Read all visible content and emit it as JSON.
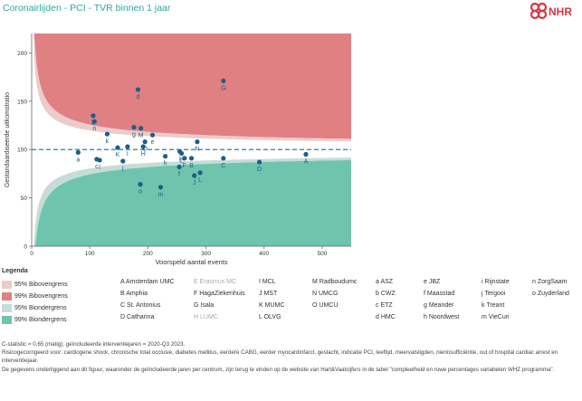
{
  "header": {
    "title": "Coronairlijden - PCI - TVR binnen 1 jaar",
    "logo_text": "NHR"
  },
  "chart_data": {
    "type": "scatter",
    "xlabel": "Voorspeld aantal events",
    "ylabel": "Gestandaardiseerde uitkomstratio",
    "xlim": [
      0,
      550
    ],
    "ylim": [
      0,
      220
    ],
    "xticks": [
      0,
      100,
      200,
      300,
      400,
      500
    ],
    "yticks": [
      0,
      50,
      100,
      150,
      200
    ],
    "reference_line": 100,
    "points": [
      {
        "label": "A",
        "x": 472,
        "y": 95
      },
      {
        "label": "B",
        "x": 275,
        "y": 91
      },
      {
        "label": "C",
        "x": 330,
        "y": 91
      },
      {
        "label": "D",
        "x": 392,
        "y": 87
      },
      {
        "label": "E",
        "x": 258,
        "y": 96
      },
      {
        "label": "F",
        "x": 263,
        "y": 91
      },
      {
        "label": "G",
        "x": 330,
        "y": 171
      },
      {
        "label": "H",
        "x": 192,
        "y": 103
      },
      {
        "label": "I",
        "x": 165,
        "y": 103
      },
      {
        "label": "J",
        "x": 280,
        "y": 73
      },
      {
        "label": "K",
        "x": 148,
        "y": 102
      },
      {
        "label": "L",
        "x": 290,
        "y": 76
      },
      {
        "label": "M",
        "x": 188,
        "y": 122
      },
      {
        "label": "N",
        "x": 285,
        "y": 108
      },
      {
        "label": "O",
        "x": 195,
        "y": 108
      },
      {
        "label": "a",
        "x": 80,
        "y": 97
      },
      {
        "label": "b",
        "x": 106,
        "y": 135
      },
      {
        "label": "c",
        "x": 112,
        "y": 90
      },
      {
        "label": "d",
        "x": 183,
        "y": 162
      },
      {
        "label": "e",
        "x": 208,
        "y": 115
      },
      {
        "label": "f",
        "x": 254,
        "y": 82
      },
      {
        "label": "g",
        "x": 176,
        "y": 123
      },
      {
        "label": "h",
        "x": 230,
        "y": 93
      },
      {
        "label": "i",
        "x": 255,
        "y": 98
      },
      {
        "label": "j",
        "x": 157,
        "y": 88
      },
      {
        "label": "k",
        "x": 130,
        "y": 116
      },
      {
        "label": "l",
        "x": 117,
        "y": 89
      },
      {
        "label": "m",
        "x": 222,
        "y": 61
      },
      {
        "label": "n",
        "x": 108,
        "y": 129
      },
      {
        "label": "o",
        "x": 187,
        "y": 64
      }
    ]
  },
  "legend": {
    "title": "Legenda",
    "bands": [
      {
        "label": "95% Bibovengrens",
        "color": "#ebcccc"
      },
      {
        "label": "99% Bibovengrens",
        "color": "#e08082"
      },
      {
        "label": "95% Biondergrens",
        "color": "#c6dcd7"
      },
      {
        "label": "99% Biondergrens",
        "color": "#6fc4ae"
      }
    ],
    "columns": [
      [
        {
          "t": "A Amsterdam UMC"
        },
        {
          "t": "B Amphia"
        },
        {
          "t": "C St. Antonius"
        },
        {
          "t": "D Catharina"
        }
      ],
      [
        {
          "t": "E Erasmus MC",
          "muted": true
        },
        {
          "t": "F HagaZiekenhuis"
        },
        {
          "t": "G Isala"
        },
        {
          "t": "H LUMC",
          "muted": true
        }
      ],
      [
        {
          "t": "I MCL"
        },
        {
          "t": "J MST"
        },
        {
          "t": "K MUMC"
        },
        {
          "t": "L OLVG"
        }
      ],
      [
        {
          "t": "M Radboudumc"
        },
        {
          "t": "N UMCG"
        },
        {
          "t": "O UMCU"
        }
      ],
      [
        {
          "t": "a ASZ"
        },
        {
          "t": "b CWZ"
        },
        {
          "t": "c ETZ"
        },
        {
          "t": "d HMC"
        }
      ],
      [
        {
          "t": "e JBZ"
        },
        {
          "t": "f Maasstad"
        },
        {
          "t": "g Meander"
        },
        {
          "t": "h Noordwest"
        }
      ],
      [
        {
          "t": "i Rijnstate"
        },
        {
          "t": "j Tergooi"
        },
        {
          "t": "k Treant"
        },
        {
          "t": "m VieCuri"
        }
      ],
      [
        {
          "t": "n ZorgSaam"
        },
        {
          "t": "o Zuyderland"
        }
      ]
    ]
  },
  "footnotes": [
    "C-statistic = 0,65 (matig); geïncludeerde interventiejaren = 2020-Q3 2023.",
    "Risicogecorrigeerd voor: cardiogene shock, chronische total occlusie, diabetes mellitus, eerdere CABG, eerder myocardinfarct, geslacht, indicatie PCI, leeftijd, meervatsligden, nierinsufficiëntie, out of hospital cardiac arrest en interventiejaar.",
    "De gegevens onderliggend aan dit figuur, waaronder de geïncludeerde jaren per centrum, zijn terug te vinden op de website van Hart&Vaatcijfers in de tabel \"compleetheid en ruwe percentages variabelen WHZ programma\"."
  ]
}
